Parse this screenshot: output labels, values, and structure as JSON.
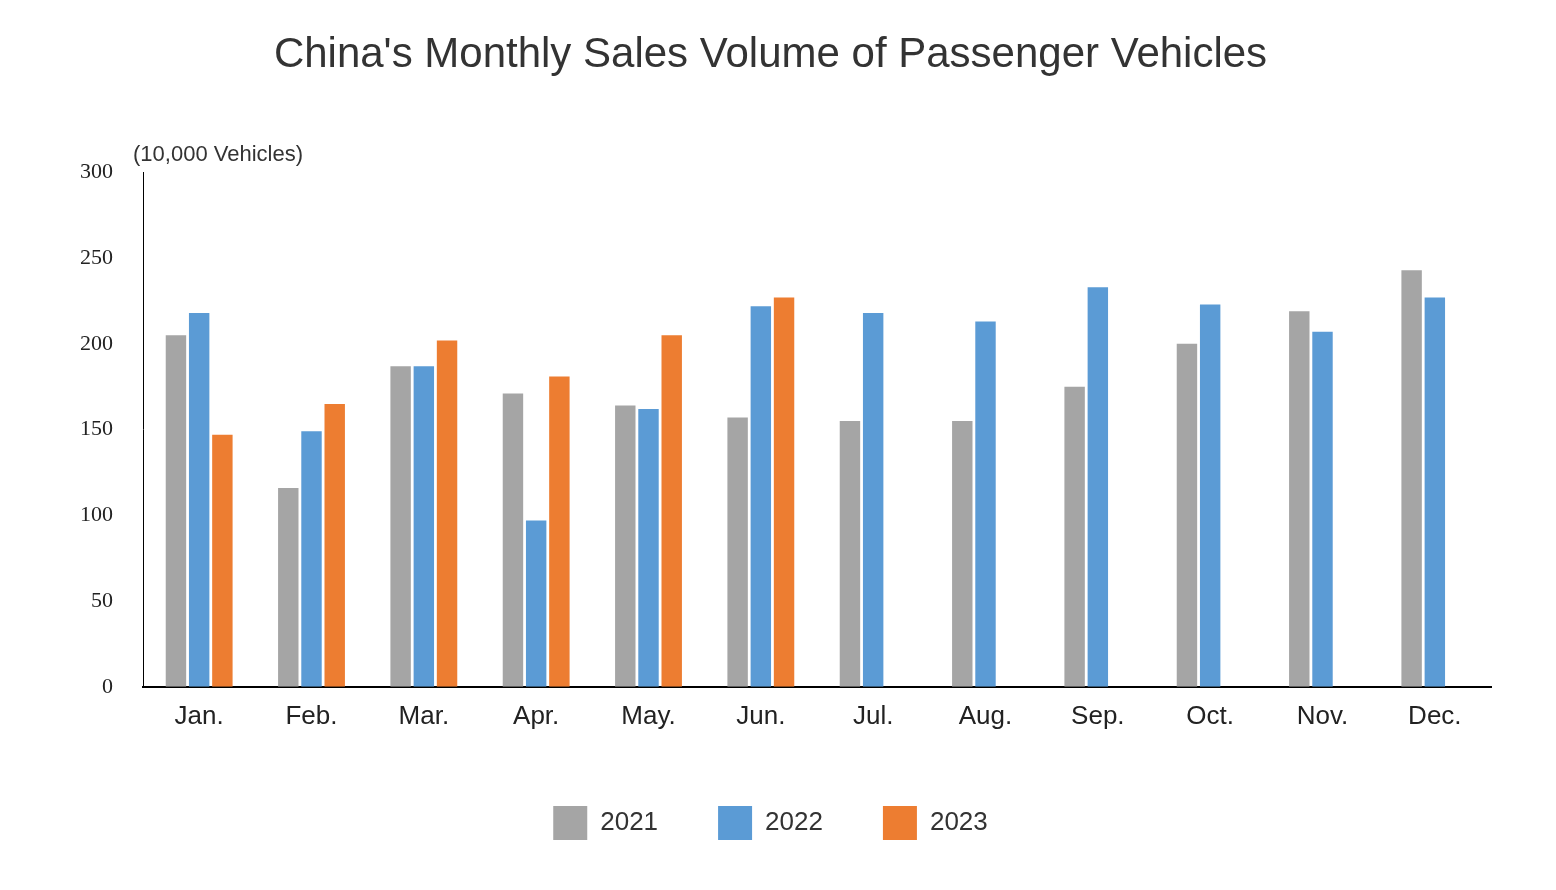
{
  "chart_data": {
    "type": "bar",
    "title": "China's Monthly Sales Volume of Passenger Vehicles",
    "ylabel": "(10,000 Vehicles)",
    "categories": [
      "Jan.",
      "Feb.",
      "Mar.",
      "Apr.",
      "May.",
      "Jun.",
      "Jul.",
      "Aug.",
      "Sep.",
      "Oct.",
      "Nov.",
      "Dec."
    ],
    "series": [
      {
        "name": "2021",
        "color": "#a5a5a5",
        "values": [
          205,
          116,
          187,
          171,
          164,
          157,
          155,
          155,
          175,
          200,
          219,
          243
        ]
      },
      {
        "name": "2022",
        "color": "#5b9bd5",
        "values": [
          218,
          149,
          187,
          97,
          162,
          222,
          218,
          213,
          233,
          223,
          207,
          227
        ]
      },
      {
        "name": "2023",
        "color": "#ed7d31",
        "values": [
          147,
          165,
          202,
          181,
          205,
          227,
          null,
          null,
          null,
          null,
          null,
          null
        ]
      }
    ],
    "ylim": [
      0,
      300
    ],
    "yticks": [
      0,
      50,
      100,
      150,
      200,
      250,
      300
    ],
    "grid": false,
    "legend": "bottom"
  }
}
